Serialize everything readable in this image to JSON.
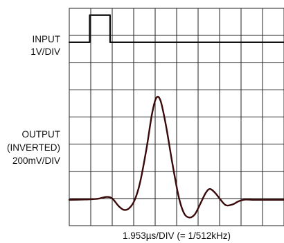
{
  "chart_data": {
    "type": "line",
    "grid": true,
    "grid_divisions": {
      "x": 10,
      "y": 8
    },
    "colors": {
      "input_trace": "#111111",
      "output_trace": "#3a0a0a",
      "grid": "#222222"
    },
    "left_labels": {
      "input": [
        "INPUT",
        "1V/DIV"
      ],
      "output": [
        "OUTPUT",
        "(INVERTED)",
        "200mV/DIV"
      ]
    },
    "xlabel": "1.953µs/DIV (= 1/512kHz)",
    "series": [
      {
        "trace": "input",
        "baseline_div": 6.75,
        "points": [
          [
            0,
            6.75
          ],
          [
            0.95,
            6.75
          ],
          [
            0.95,
            7.75
          ],
          [
            1.9,
            7.75
          ],
          [
            1.9,
            6.75
          ],
          [
            10,
            6.75
          ]
        ]
      },
      {
        "trace": "output",
        "baseline_div": 0.95,
        "points": [
          [
            0,
            0.95
          ],
          [
            0.6,
            0.96
          ],
          [
            1.0,
            0.97
          ],
          [
            1.4,
            1.0
          ],
          [
            1.75,
            1.06
          ],
          [
            2.0,
            1.0
          ],
          [
            2.3,
            0.72
          ],
          [
            2.55,
            0.58
          ],
          [
            2.8,
            0.65
          ],
          [
            3.05,
            0.95
          ],
          [
            3.3,
            1.6
          ],
          [
            3.6,
            2.85
          ],
          [
            3.85,
            4.1
          ],
          [
            4.05,
            4.7
          ],
          [
            4.25,
            4.6
          ],
          [
            4.5,
            3.7
          ],
          [
            4.8,
            2.3
          ],
          [
            5.1,
            1.05
          ],
          [
            5.35,
            0.45
          ],
          [
            5.6,
            0.3
          ],
          [
            5.85,
            0.42
          ],
          [
            6.1,
            0.8
          ],
          [
            6.35,
            1.2
          ],
          [
            6.55,
            1.35
          ],
          [
            6.8,
            1.2
          ],
          [
            7.05,
            0.95
          ],
          [
            7.3,
            0.75
          ],
          [
            7.6,
            0.78
          ],
          [
            7.9,
            0.9
          ],
          [
            8.2,
            0.96
          ],
          [
            8.6,
            0.95
          ],
          [
            9.2,
            0.95
          ],
          [
            10,
            0.95
          ]
        ]
      }
    ]
  }
}
